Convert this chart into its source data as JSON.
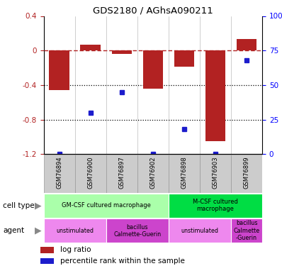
{
  "title": "GDS2180 / AGhsA090211",
  "samples": [
    "GSM76894",
    "GSM76900",
    "GSM76897",
    "GSM76902",
    "GSM76898",
    "GSM76903",
    "GSM76899"
  ],
  "log_ratio": [
    -0.46,
    0.07,
    -0.04,
    -0.44,
    -0.19,
    -1.05,
    0.13
  ],
  "percentile_rank": [
    0.0,
    30.0,
    45.0,
    0.0,
    18.0,
    0.0,
    68.0
  ],
  "bar_color": "#b22222",
  "dot_color": "#1c1ccc",
  "ylim_left": [
    -1.2,
    0.4
  ],
  "ylim_right": [
    0,
    100
  ],
  "yticks_left": [
    0.4,
    0.0,
    -0.4,
    -0.8,
    -1.2
  ],
  "ytick_labels_left": [
    "0.4",
    "0",
    "-0.4",
    "-0.8",
    "-1.2"
  ],
  "yticks_right": [
    100,
    75,
    50,
    25,
    0
  ],
  "ytick_labels_right": [
    "100%",
    "75",
    "50",
    "25",
    "0"
  ],
  "dotted_lines": [
    -0.4,
    -0.8
  ],
  "cell_type_groups": [
    {
      "label": "GM-CSF cultured macrophage",
      "start": 0,
      "end": 4,
      "color": "#aaffaa"
    },
    {
      "label": "M-CSF cultured\nmacrophage",
      "start": 4,
      "end": 7,
      "color": "#00dd44"
    }
  ],
  "agent_groups": [
    {
      "label": "unstimulated",
      "start": 0,
      "end": 2,
      "color": "#ee88ee"
    },
    {
      "label": "bacillus\nCalmette-Guerin",
      "start": 2,
      "end": 4,
      "color": "#cc44cc"
    },
    {
      "label": "unstimulated",
      "start": 4,
      "end": 6,
      "color": "#ee88ee"
    },
    {
      "label": "bacillus\nCalmette\n-Guerin",
      "start": 6,
      "end": 7,
      "color": "#cc44cc"
    }
  ],
  "sample_bg_color": "#cccccc",
  "sample_border_color": "#999999"
}
